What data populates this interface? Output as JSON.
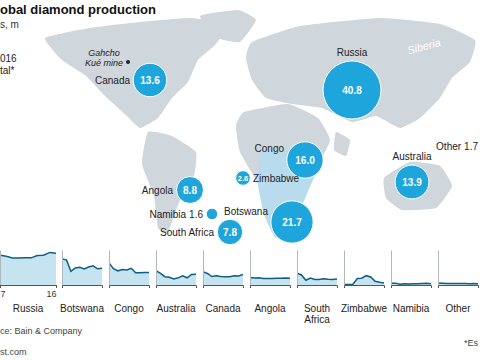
{
  "chart_data": [
    {
      "type": "bubble_map",
      "title": "obal diamond production",
      "subtitle": "s, m",
      "annotations": [
        "016",
        "tal*",
        "Gahcho",
        "Kué mine",
        "Siberia"
      ],
      "categories": [
        "Canada",
        "Russia",
        "Congo",
        "Angola",
        "Zimbabwe",
        "Namibia",
        "Botswana",
        "South Africa",
        "Australia",
        "Other"
      ],
      "values": [
        13.6,
        40.8,
        16.0,
        8.8,
        2.6,
        1.6,
        21.7,
        7.8,
        13.9,
        1.7
      ],
      "value_labels": [
        "13.6",
        "40.8",
        "16.0",
        "8.8",
        "2.6",
        "1.6",
        "21.7",
        "7.8",
        "13.9",
        "1.7"
      ],
      "data_labels": true,
      "color": "#1ea5db"
    },
    {
      "type": "area",
      "x": [
        2007,
        2008,
        2009,
        2010,
        2011,
        2012,
        2013,
        2014,
        2015,
        2016
      ],
      "xlim": [
        2007,
        2016
      ],
      "xticks": [
        {
          "value": 2007,
          "label": "7"
        },
        {
          "value": 2016,
          "label": "16"
        }
      ],
      "ylim": [
        0,
        45
      ],
      "tick_labels": "x",
      "color": "#0f5f80",
      "series": [
        {
          "name": "Russia",
          "values": [
            38.3,
            36.9,
            34.8,
            34.8,
            35.1,
            34.9,
            37.9,
            38.3,
            41.9,
            40.8
          ]
        },
        {
          "name": "Botswana",
          "values": [
            33.6,
            32.3,
            17.7,
            22.0,
            22.9,
            20.6,
            23.2,
            24.7,
            20.8,
            21.7
          ]
        },
        {
          "name": "Congo",
          "values": [
            28.5,
            20.9,
            18.2,
            19.8,
            19.2,
            21.5,
            15.7,
            15.7,
            16.0,
            16.0
          ]
        },
        {
          "name": "Australia",
          "values": [
            18.5,
            15.0,
            10.7,
            10.0,
            7.8,
            9.2,
            11.7,
            9.3,
            13.6,
            13.9
          ]
        },
        {
          "name": "Canada",
          "values": [
            17.0,
            14.8,
            10.9,
            11.8,
            10.8,
            10.5,
            10.6,
            12.0,
            11.7,
            13.6
          ]
        },
        {
          "name": "Angola",
          "values": [
            9.7,
            8.9,
            9.4,
            8.4,
            8.3,
            8.3,
            8.6,
            8.8,
            9.0,
            8.8
          ]
        },
        {
          "name": "South Africa",
          "values": [
            15.2,
            12.9,
            6.1,
            8.9,
            7.1,
            7.1,
            8.1,
            7.4,
            7.2,
            7.8
          ]
        },
        {
          "name": "Zimbabwe",
          "values": [
            0.7,
            0.8,
            1.0,
            8.4,
            8.7,
            12.0,
            10.4,
            4.8,
            3.5,
            2.6
          ]
        },
        {
          "name": "Namibia",
          "values": [
            2.3,
            2.4,
            0.9,
            1.5,
            1.3,
            1.6,
            1.7,
            1.9,
            2.1,
            1.6
          ]
        },
        {
          "name": "Other",
          "values": [
            2.5,
            2.2,
            2.0,
            1.9,
            1.8,
            1.9,
            1.8,
            1.7,
            1.8,
            1.7
          ]
        }
      ],
      "annotations": [
        "ce: Bain & Company",
        "*Es",
        "st.com"
      ]
    }
  ]
}
